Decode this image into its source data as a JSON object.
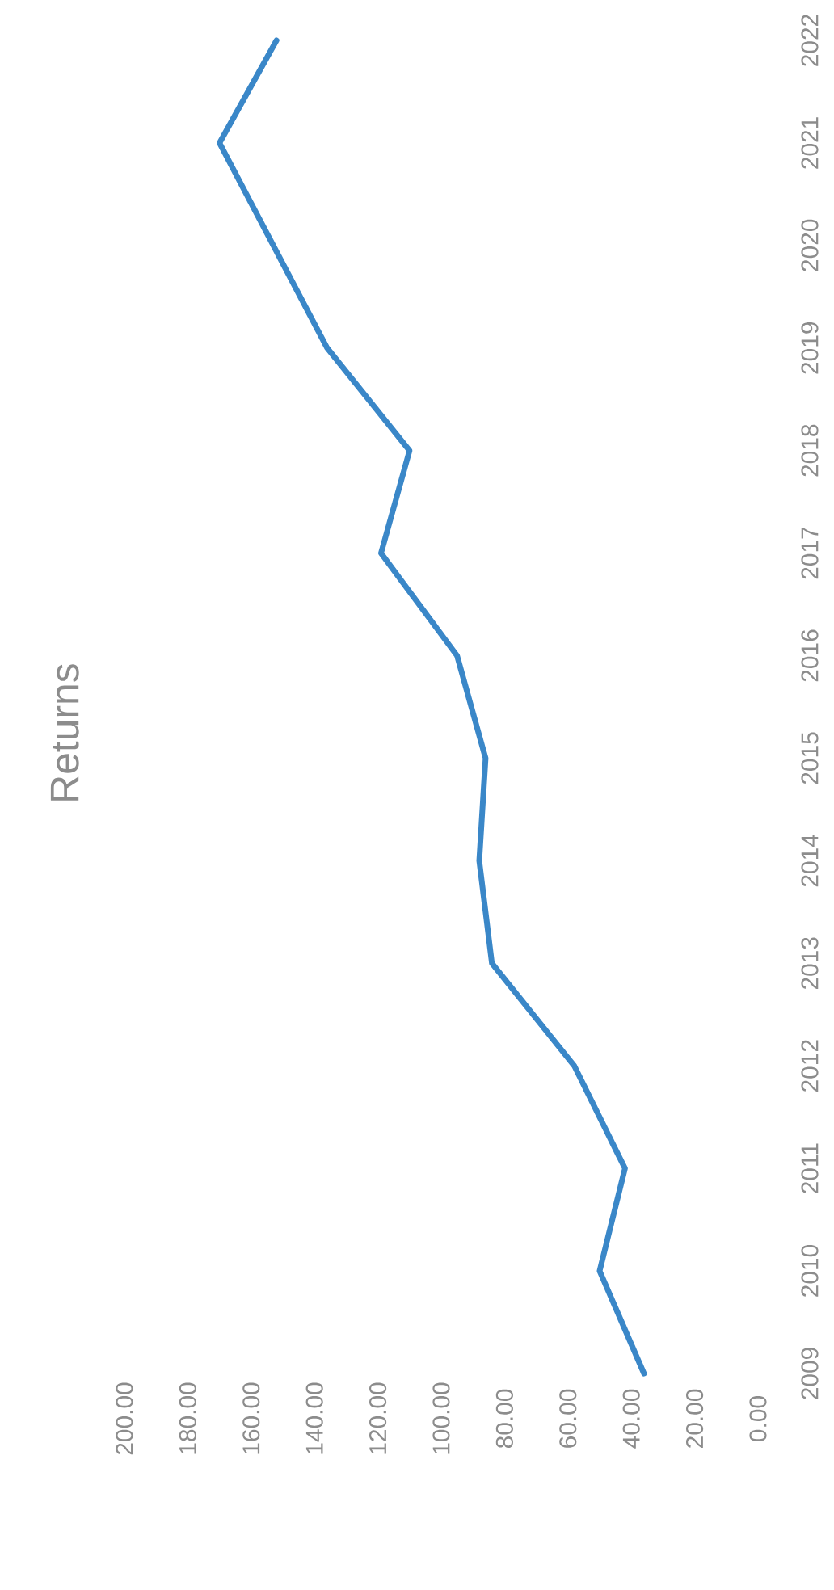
{
  "chart_data": {
    "type": "line",
    "title": "Returns",
    "orientation": "horizontal",
    "categories": [
      "2022",
      "2021",
      "2020",
      "2019",
      "2018",
      "2017",
      "2016",
      "2015",
      "2014",
      "2013",
      "2012",
      "2011",
      "2010",
      "2009"
    ],
    "series": [
      {
        "color": "#3a87c8",
        "values": [
          152,
          170,
          153,
          136,
          110,
          119,
          95,
          86,
          88,
          84,
          58,
          42,
          50,
          36
        ]
      }
    ],
    "xlim": [
      200,
      0
    ],
    "xticks": [
      {
        "value": 200,
        "label": "200.00"
      },
      {
        "value": 180,
        "label": "180.00"
      },
      {
        "value": 160,
        "label": "160.00"
      },
      {
        "value": 140,
        "label": "140.00"
      },
      {
        "value": 120,
        "label": "120.00"
      },
      {
        "value": 100,
        "label": "100.00"
      },
      {
        "value": 80,
        "label": "80.00"
      },
      {
        "value": 60,
        "label": "60.00"
      },
      {
        "value": 40,
        "label": "40.00"
      },
      {
        "value": 20,
        "label": "20.00"
      },
      {
        "value": 0,
        "label": "0.00"
      }
    ]
  }
}
